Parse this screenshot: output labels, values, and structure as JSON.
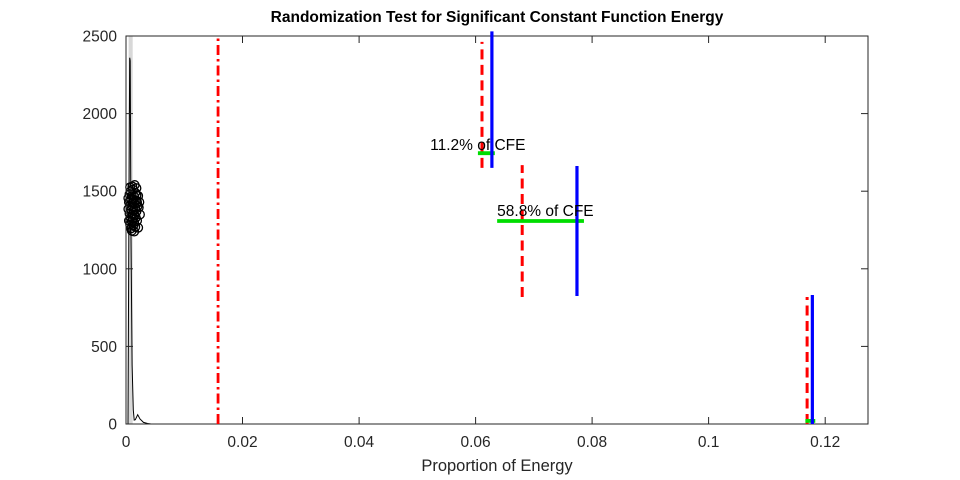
{
  "figure": {
    "title": "Randomization Test for Significant Constant Function Energy",
    "xlabel": "Proportion of Energy"
  },
  "colors": {
    "blue": "#0000ff",
    "red": "#ff0000",
    "green": "#00dd00",
    "axis": "#262626",
    "density_curve": "#000000",
    "density_band": "#d8d8d8",
    "background": "#ffffff"
  },
  "chart_data": {
    "type": "composite",
    "subtypes": [
      "density",
      "scatter",
      "line"
    ],
    "title": "Randomization Test for Significant Constant Function Energy",
    "xlabel": "Proportion of Energy",
    "ylabel": "",
    "xlim": [
      0,
      0.12735
    ],
    "ylim": [
      0,
      2500
    ],
    "grid": false,
    "x_ticks": {
      "values": [
        0,
        0.02,
        0.04,
        0.06,
        0.08,
        0.1,
        0.12
      ],
      "labels": [
        "0",
        "0.02",
        "0.04",
        "0.06",
        "0.08",
        "0.1",
        "0.12"
      ]
    },
    "y_ticks": {
      "values": [
        0,
        500,
        1000,
        1500,
        2000,
        2500
      ],
      "labels": [
        "0",
        "500",
        "1000",
        "1500",
        "2000",
        "2500"
      ]
    },
    "null_distribution": {
      "description": "narrow density spike of randomized null samples near x=0, peak ~2360",
      "band": {
        "x0": 0.00045,
        "x1": 0.00115,
        "y0": 0,
        "y1": 2500
      },
      "curve": [
        [
          0.00035,
          0
        ],
        [
          0.00055,
          1800
        ],
        [
          0.00063,
          2360
        ],
        [
          0.00072,
          2340
        ],
        [
          0.00085,
          1200
        ],
        [
          0.00105,
          380
        ],
        [
          0.00125,
          90
        ],
        [
          0.0014,
          25
        ],
        [
          0.0016,
          28
        ],
        [
          0.002,
          60
        ],
        [
          0.0024,
          32
        ],
        [
          0.003,
          10
        ],
        [
          0.0037,
          3
        ],
        [
          0.0043,
          0
        ]
      ],
      "scatter_marker": "open-circle",
      "scatter": [
        [
          0.0008,
          1500
        ],
        [
          0.0012,
          1510
        ],
        [
          0.0016,
          1490
        ],
        [
          0.0006,
          1480
        ],
        [
          0.001,
          1470
        ],
        [
          0.0014,
          1465
        ],
        [
          0.0018,
          1475
        ],
        [
          0.0004,
          1455
        ],
        [
          0.0009,
          1450
        ],
        [
          0.0013,
          1445
        ],
        [
          0.0017,
          1440
        ],
        [
          0.0021,
          1470
        ],
        [
          0.0005,
          1430
        ],
        [
          0.0011,
          1425
        ],
        [
          0.0015,
          1420
        ],
        [
          0.0019,
          1430
        ],
        [
          0.0007,
          1405
        ],
        [
          0.0012,
          1400
        ],
        [
          0.0016,
          1395
        ],
        [
          0.002,
          1405
        ],
        [
          0.0004,
          1385
        ],
        [
          0.0009,
          1380
        ],
        [
          0.0013,
          1375
        ],
        [
          0.0018,
          1370
        ],
        [
          0.0006,
          1355
        ],
        [
          0.0011,
          1350
        ],
        [
          0.0015,
          1345
        ],
        [
          0.0024,
          1350
        ],
        [
          0.0008,
          1330
        ],
        [
          0.0012,
          1325
        ],
        [
          0.0017,
          1330
        ],
        [
          0.0005,
          1310
        ],
        [
          0.001,
          1305
        ],
        [
          0.0014,
          1300
        ],
        [
          0.0019,
          1310
        ],
        [
          0.0007,
          1285
        ],
        [
          0.0013,
          1280
        ],
        [
          0.0016,
          1270
        ],
        [
          0.0009,
          1260
        ],
        [
          0.0021,
          1265
        ],
        [
          0.0011,
          1530
        ],
        [
          0.0015,
          1540
        ],
        [
          0.0007,
          1525
        ],
        [
          0.0018,
          1520
        ],
        [
          0.0023,
          1430
        ],
        [
          0.0022,
          1395
        ],
        [
          0.001,
          1245
        ],
        [
          0.0014,
          1240
        ]
      ]
    },
    "threshold_line": {
      "x": 0.0158,
      "y": [
        0,
        2500
      ],
      "style": "dash-dot",
      "color_key": "red"
    },
    "segments": [
      {
        "red_dashed": {
          "x": 0.0611,
          "y": [
            1650,
            2462
          ]
        },
        "blue_line": {
          "x": 0.0628,
          "y": [
            1650,
            2530
          ]
        },
        "green_marker": {
          "y": 1745,
          "x": [
            0.0604,
            0.0633
          ]
        },
        "label": {
          "text": "11.2% of CFE",
          "x": 0.0522,
          "y": 1762
        }
      },
      {
        "red_dashed": {
          "x": 0.068,
          "y": [
            818,
            1668
          ]
        },
        "blue_line": {
          "x": 0.0774,
          "y": [
            825,
            1662
          ]
        },
        "green_marker": {
          "y": 1308,
          "x": [
            0.0637,
            0.0786
          ]
        },
        "label": {
          "text": "58.8% of CFE",
          "x": 0.0637,
          "y": 1334
        }
      },
      {
        "red_dashed": {
          "x": 0.1169,
          "y": [
            0,
            818
          ]
        },
        "blue_line": {
          "x": 0.1178,
          "y": [
            0,
            831
          ]
        },
        "green_marker": {
          "y": 20,
          "x": [
            0.1166,
            0.1183
          ]
        },
        "label": null
      }
    ]
  }
}
